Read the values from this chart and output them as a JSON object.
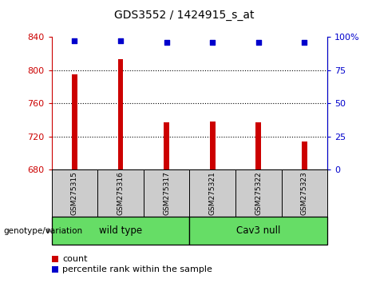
{
  "title": "GDS3552 / 1424915_s_at",
  "samples": [
    "GSM275315",
    "GSM275316",
    "GSM275317",
    "GSM275321",
    "GSM275322",
    "GSM275323"
  ],
  "counts": [
    795,
    813,
    737,
    738,
    737,
    714
  ],
  "percentile_ranks": [
    97,
    97,
    96,
    96,
    96,
    96
  ],
  "bar_color": "#cc0000",
  "dot_color": "#0000cc",
  "ylim_left": [
    680,
    840
  ],
  "ylim_right": [
    0,
    100
  ],
  "yticks_left": [
    680,
    720,
    760,
    800,
    840
  ],
  "yticks_right": [
    0,
    25,
    50,
    75,
    100
  ],
  "group_label": "genotype/variation",
  "legend_count_label": "count",
  "legend_percentile_label": "percentile rank within the sample",
  "tick_area_color": "#cccccc",
  "green_color": "#66dd66",
  "left_tick_color": "#cc0000",
  "right_tick_color": "#0000cc",
  "bar_width": 0.12
}
